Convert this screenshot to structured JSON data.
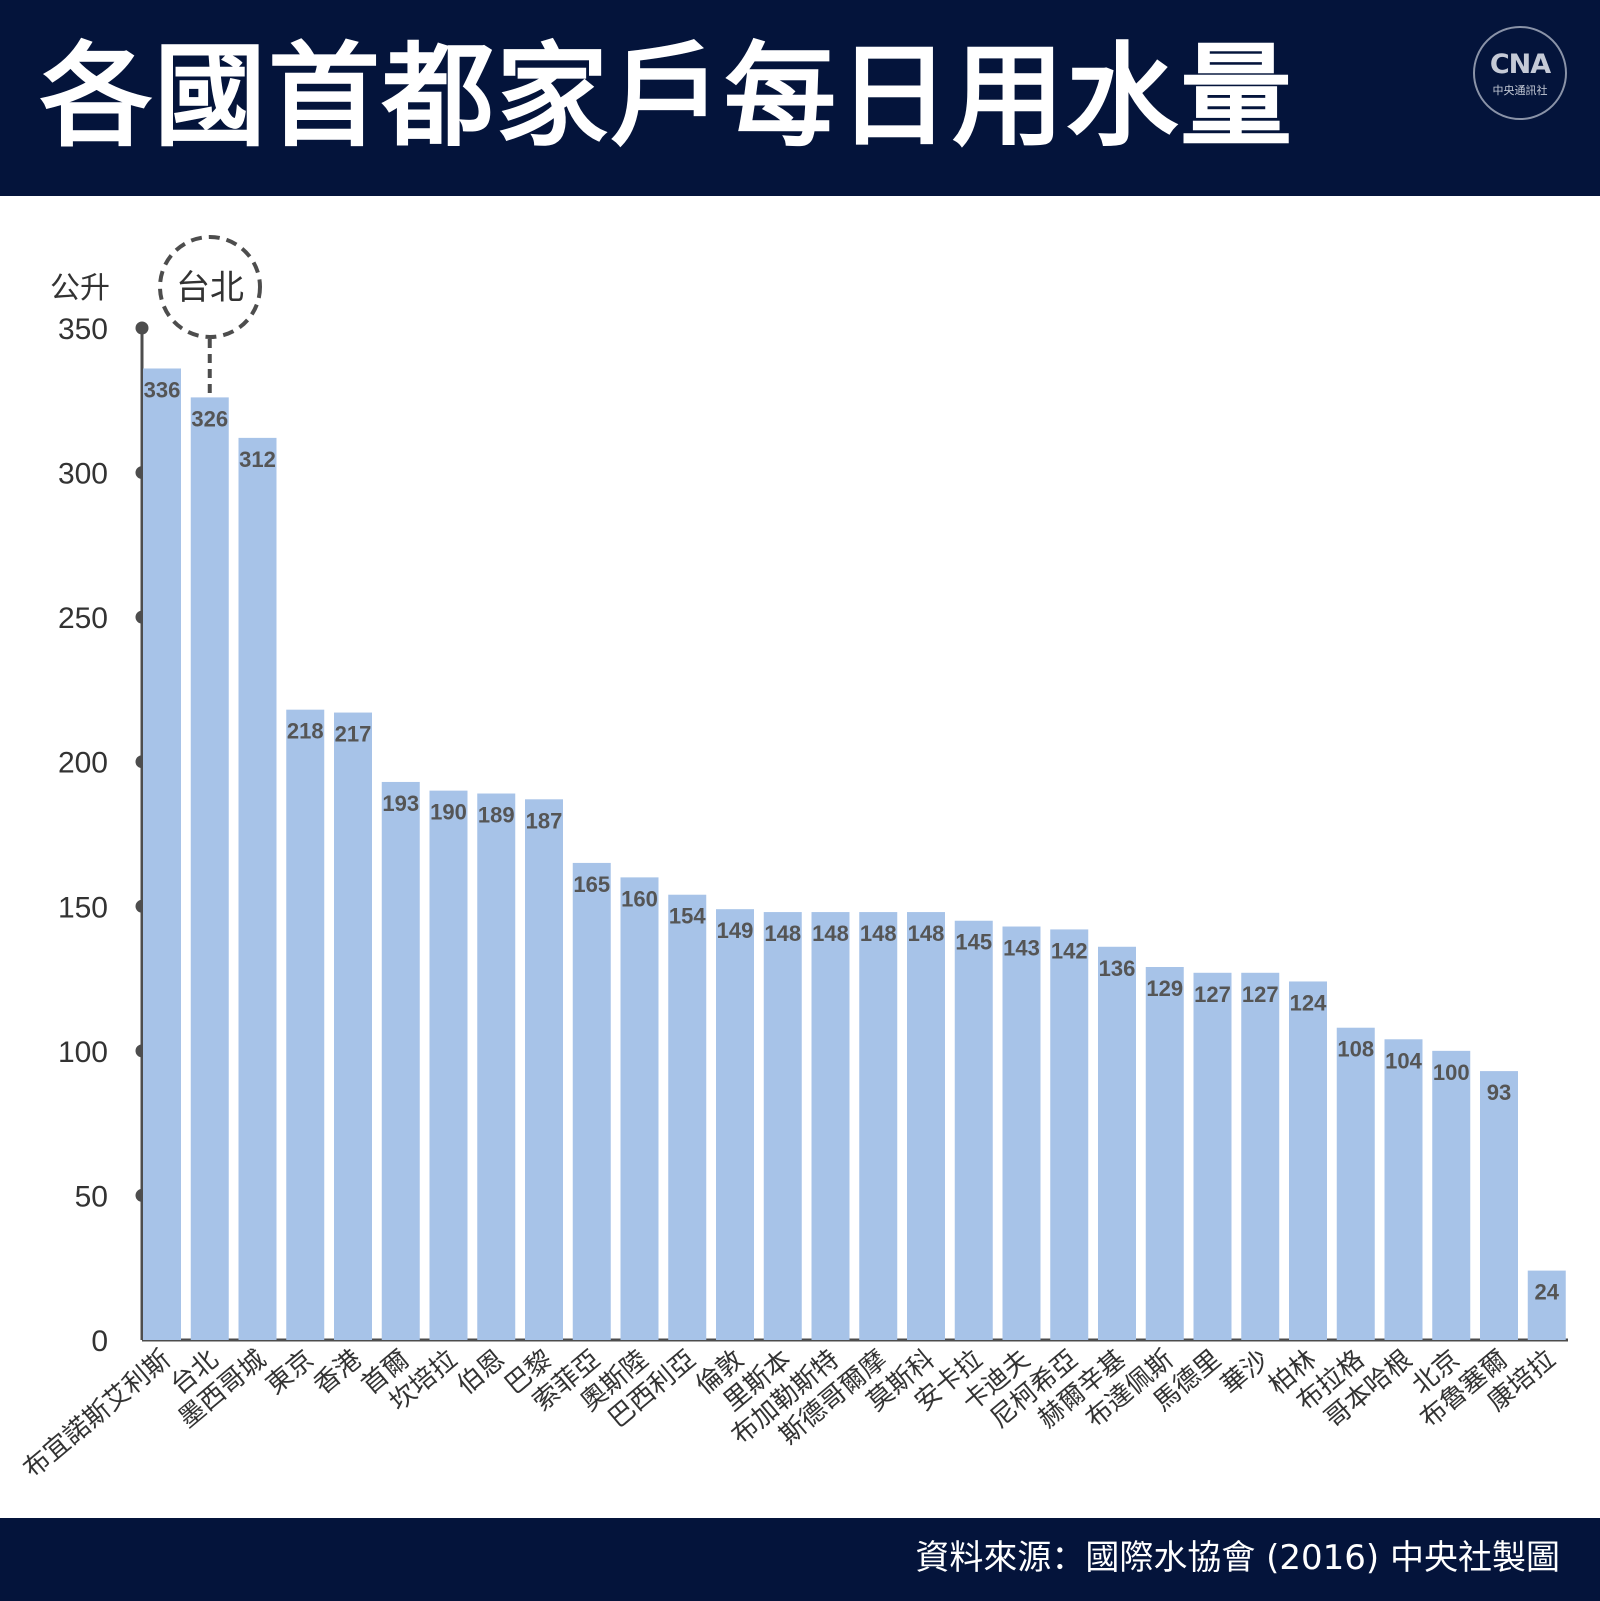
{
  "header": {
    "title": "各國首都家戶每日用水量",
    "logo_mark": "CNA",
    "logo_text": "中央通訊社"
  },
  "footer": {
    "source": "資料來源：國際水協會 (2016)  中央社製圖"
  },
  "colors": {
    "header_bg": "#04143b",
    "bar": "#a7c3e8",
    "axis": "#4d4d4d",
    "value_label": "#555555"
  },
  "chart_data": {
    "type": "bar",
    "ylabel": "公升",
    "ylim": [
      0,
      350
    ],
    "yticks": [
      0,
      50,
      100,
      150,
      200,
      250,
      300,
      350
    ],
    "grid": false,
    "highlight": {
      "category": "台北",
      "label": "台北",
      "style": "dashed-circle"
    },
    "categories": [
      "布宜諾斯艾利斯",
      "台北",
      "墨西哥城",
      "東京",
      "香港",
      "首爾",
      "坎培拉",
      "伯恩",
      "巴黎",
      "索菲亞",
      "奧斯陸",
      "巴西利亞",
      "倫敦",
      "里斯本",
      "布加勒斯特",
      "斯德哥爾摩",
      "莫斯科",
      "安卡拉",
      "卡迪夫",
      "尼柯希亞",
      "赫爾辛基",
      "布達佩斯",
      "馬德里",
      "華沙",
      "柏林",
      "布拉格",
      "哥本哈根",
      "北京",
      "布魯塞爾",
      "康培拉"
    ],
    "values": [
      336,
      326,
      312,
      218,
      217,
      193,
      190,
      189,
      187,
      165,
      160,
      154,
      149,
      148,
      148,
      148,
      148,
      145,
      143,
      142,
      136,
      129,
      127,
      127,
      124,
      108,
      104,
      100,
      93,
      24
    ]
  }
}
